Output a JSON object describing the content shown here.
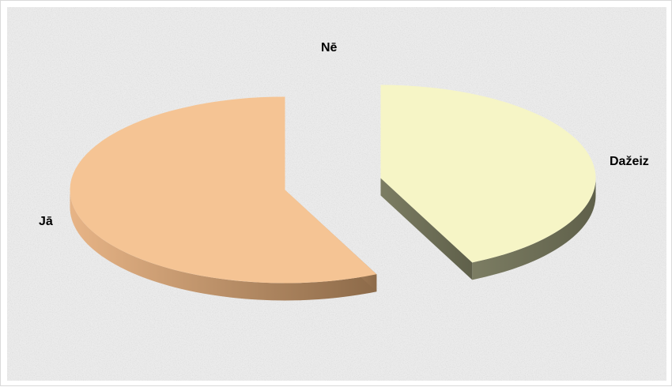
{
  "chart_data": {
    "type": "pie",
    "style": "3d-exploded",
    "categories": [
      "Nē",
      "Dažeiz",
      "Jā"
    ],
    "values": [
      0,
      43,
      57
    ],
    "colors": {
      "Nē": "#cccccc",
      "Dažeiz": "#f6f5c6",
      "Jā": "#f5c494"
    },
    "side_colors": {
      "Dažeiz": [
        "#7c7d63",
        "#5f604a"
      ],
      "Jā": [
        "#e7b486",
        "#8c6a49"
      ]
    },
    "background": "granite-texture",
    "legend": "none",
    "data_labels": "category-name"
  }
}
